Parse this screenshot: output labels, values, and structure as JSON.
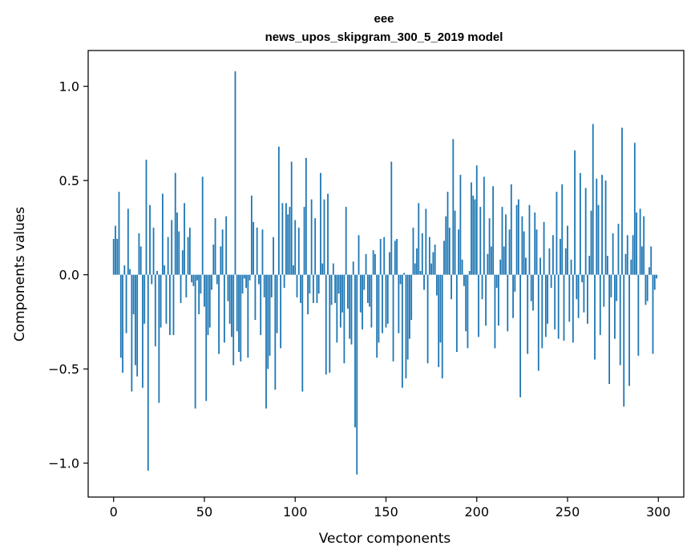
{
  "chart_data": {
    "type": "bar",
    "title": "eee",
    "subtitle": "news_upos_skipgram_300_5_2019 model",
    "xlabel": "Vector components",
    "ylabel": "Components values",
    "xlim": [
      -14,
      314
    ],
    "ylim": [
      -1.18,
      1.19
    ],
    "xticks": [
      0,
      50,
      100,
      150,
      200,
      250,
      300
    ],
    "yticks": [
      -1.0,
      -0.5,
      0.0,
      0.5,
      1.0
    ],
    "ytick_labels": [
      "−1.0",
      "−0.5",
      "0.0",
      "0.5",
      "1.0"
    ],
    "bar_color": "#1f77b4",
    "grid": false,
    "x": [
      0,
      1,
      2,
      3,
      4,
      5,
      6,
      7,
      8,
      9,
      10,
      11,
      12,
      13,
      14,
      15,
      16,
      17,
      18,
      19,
      20,
      21,
      22,
      23,
      24,
      25,
      26,
      27,
      28,
      29,
      30,
      31,
      32,
      33,
      34,
      35,
      36,
      37,
      38,
      39,
      40,
      41,
      42,
      43,
      44,
      45,
      46,
      47,
      48,
      49,
      50,
      51,
      52,
      53,
      54,
      55,
      56,
      57,
      58,
      59,
      60,
      61,
      62,
      63,
      64,
      65,
      66,
      67,
      68,
      69,
      70,
      71,
      72,
      73,
      74,
      75,
      76,
      77,
      78,
      79,
      80,
      81,
      82,
      83,
      84,
      85,
      86,
      87,
      88,
      89,
      90,
      91,
      92,
      93,
      94,
      95,
      96,
      97,
      98,
      99,
      100,
      101,
      102,
      103,
      104,
      105,
      106,
      107,
      108,
      109,
      110,
      111,
      112,
      113,
      114,
      115,
      116,
      117,
      118,
      119,
      120,
      121,
      122,
      123,
      124,
      125,
      126,
      127,
      128,
      129,
      130,
      131,
      132,
      133,
      134,
      135,
      136,
      137,
      138,
      139,
      140,
      141,
      142,
      143,
      144,
      145,
      146,
      147,
      148,
      149,
      150,
      151,
      152,
      153,
      154,
      155,
      156,
      157,
      158,
      159,
      160,
      161,
      162,
      163,
      164,
      165,
      166,
      167,
      168,
      169,
      170,
      171,
      172,
      173,
      174,
      175,
      176,
      177,
      178,
      179,
      180,
      181,
      182,
      183,
      184,
      185,
      186,
      187,
      188,
      189,
      190,
      191,
      192,
      193,
      194,
      195,
      196,
      197,
      198,
      199,
      200,
      201,
      202,
      203,
      204,
      205,
      206,
      207,
      208,
      209,
      210,
      211,
      212,
      213,
      214,
      215,
      216,
      217,
      218,
      219,
      220,
      221,
      222,
      223,
      224,
      225,
      226,
      227,
      228,
      229,
      230,
      231,
      232,
      233,
      234,
      235,
      236,
      237,
      238,
      239,
      240,
      241,
      242,
      243,
      244,
      245,
      246,
      247,
      248,
      249,
      250,
      251,
      252,
      253,
      254,
      255,
      256,
      257,
      258,
      259,
      260,
      261,
      262,
      263,
      264,
      265,
      266,
      267,
      268,
      269,
      270,
      271,
      272,
      273,
      274,
      275,
      276,
      277,
      278,
      279,
      280,
      281,
      282,
      283,
      284,
      285,
      286,
      287,
      288,
      289,
      290,
      291,
      292,
      293,
      294,
      295,
      296,
      297,
      298,
      299
    ],
    "values": [
      0.19,
      0.26,
      0.19,
      0.44,
      -0.44,
      -0.52,
      0.05,
      -0.31,
      0.35,
      0.03,
      -0.62,
      -0.21,
      -0.48,
      -0.54,
      0.22,
      0.15,
      -0.6,
      -0.26,
      0.61,
      -1.04,
      0.37,
      -0.05,
      0.25,
      -0.38,
      0.02,
      -0.68,
      -0.28,
      0.43,
      0.05,
      -0.26,
      0.2,
      -0.32,
      0.29,
      -0.32,
      0.54,
      0.33,
      0.23,
      -0.15,
      0.13,
      0.38,
      -0.12,
      0.2,
      0.25,
      -0.04,
      -0.06,
      -0.71,
      -0.03,
      -0.21,
      -0.1,
      0.52,
      -0.17,
      -0.67,
      -0.32,
      -0.28,
      -0.08,
      0.16,
      0.3,
      -0.05,
      -0.42,
      0.15,
      0.24,
      -0.36,
      0.31,
      -0.14,
      -0.26,
      -0.33,
      -0.48,
      1.08,
      -0.3,
      -0.41,
      -0.46,
      -0.1,
      -0.02,
      -0.07,
      -0.44,
      -0.03,
      0.42,
      0.28,
      -0.24,
      0.25,
      -0.05,
      -0.32,
      0.24,
      -0.12,
      -0.71,
      -0.5,
      -0.43,
      -0.12,
      0.2,
      -0.61,
      -0.31,
      0.68,
      -0.39,
      0.38,
      -0.07,
      0.38,
      0.32,
      0.36,
      0.6,
      0.05,
      0.29,
      -0.12,
      0.25,
      -0.15,
      -0.62,
      0.36,
      0.62,
      -0.21,
      -0.1,
      0.4,
      -0.15,
      0.3,
      -0.15,
      -0.1,
      0.54,
      0.06,
      0.4,
      -0.53,
      0.43,
      -0.52,
      -0.16,
      0.06,
      -0.15,
      -0.36,
      -0.1,
      -0.28,
      -0.2,
      -0.47,
      0.36,
      -0.18,
      -0.34,
      -0.37,
      0.07,
      -0.81,
      -1.06,
      0.21,
      -0.2,
      -0.29,
      -0.08,
      0.11,
      -0.15,
      -0.17,
      -0.28,
      0.13,
      0.11,
      -0.44,
      -0.36,
      0.19,
      -0.31,
      0.2,
      -0.28,
      -0.26,
      0.12,
      0.6,
      -0.46,
      0.18,
      0.19,
      -0.31,
      -0.05,
      -0.6,
      0.01,
      -0.55,
      -0.45,
      -0.34,
      -0.24,
      0.25,
      0.06,
      0.14,
      0.38,
      0.02,
      0.22,
      -0.08,
      0.35,
      -0.47,
      0.2,
      0.06,
      0.12,
      0.16,
      -0.11,
      -0.49,
      -0.36,
      -0.55,
      0.18,
      0.31,
      0.44,
      0.25,
      -0.13,
      0.72,
      0.34,
      -0.41,
      0.24,
      0.53,
      0.08,
      -0.06,
      -0.3,
      -0.39,
      0.02,
      0.49,
      0.42,
      0.4,
      0.58,
      -0.33,
      0.36,
      -0.13,
      0.52,
      -0.27,
      0.11,
      0.3,
      0.15,
      0.47,
      -0.39,
      -0.07,
      -0.27,
      0.08,
      0.36,
      0.15,
      0.32,
      -0.3,
      0.24,
      0.48,
      -0.23,
      -0.09,
      0.37,
      0.4,
      -0.65,
      0.31,
      0.23,
      0.09,
      -0.42,
      0.37,
      -0.14,
      -0.19,
      0.33,
      0.24,
      -0.51,
      0.09,
      -0.39,
      0.28,
      -0.33,
      -0.26,
      0.14,
      -0.07,
      0.21,
      -0.29,
      0.44,
      -0.34,
      0.19,
      0.48,
      -0.35,
      0.14,
      0.26,
      -0.25,
      0.08,
      -0.36,
      0.66,
      -0.13,
      -0.23,
      0.54,
      -0.04,
      -0.2,
      0.46,
      -0.26,
      0.1,
      0.34,
      0.8,
      -0.45,
      0.51,
      0.37,
      -0.32,
      0.53,
      -0.17,
      0.5,
      0.1,
      -0.58,
      -0.12,
      0.22,
      -0.34,
      -0.14,
      0.27,
      -0.48,
      0.78,
      -0.7,
      0.11,
      0.21,
      -0.59,
      0.08,
      0.21,
      0.7,
      0.33,
      -0.43,
      0.35,
      0.15,
      0.31,
      -0.16,
      -0.14,
      0.04,
      0.15,
      -0.42,
      -0.08,
      -0.02
    ]
  }
}
